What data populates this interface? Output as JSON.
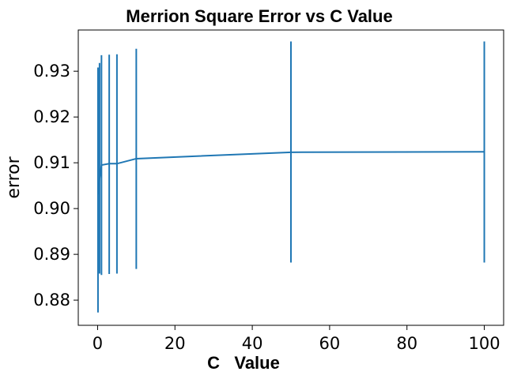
{
  "chart_data": {
    "type": "line",
    "title": "Merrion Square Error vs C Value",
    "xlabel": "C   Value",
    "ylabel": "error",
    "xlim": [
      -5,
      105
    ],
    "ylim": [
      0.8745,
      0.939
    ],
    "xticks": [
      0,
      20,
      40,
      60,
      80,
      100
    ],
    "xtick_labels": [
      "0",
      "20",
      "40",
      "60",
      "80",
      "100"
    ],
    "yticks": [
      0.88,
      0.89,
      0.9,
      0.91,
      0.92,
      0.93
    ],
    "ytick_labels": [
      "0.88",
      "0.89",
      "0.90",
      "0.91",
      "0.92",
      "0.93"
    ],
    "grid": false,
    "series": [
      {
        "color": "#1f77b4",
        "x": [
          0.1,
          0.5,
          1,
          3,
          5,
          10,
          50,
          100
        ],
        "y": [
          0.9031,
          0.9065,
          0.9095,
          0.9098,
          0.9098,
          0.9109,
          0.9123,
          0.9124
        ],
        "err_low": [
          0.8773,
          0.8858,
          0.8855,
          0.8857,
          0.8858,
          0.8868,
          0.8882,
          0.8882
        ],
        "err_high": [
          0.9308,
          0.9318,
          0.9335,
          0.9336,
          0.9337,
          0.9349,
          0.9365,
          0.9365
        ]
      }
    ]
  }
}
